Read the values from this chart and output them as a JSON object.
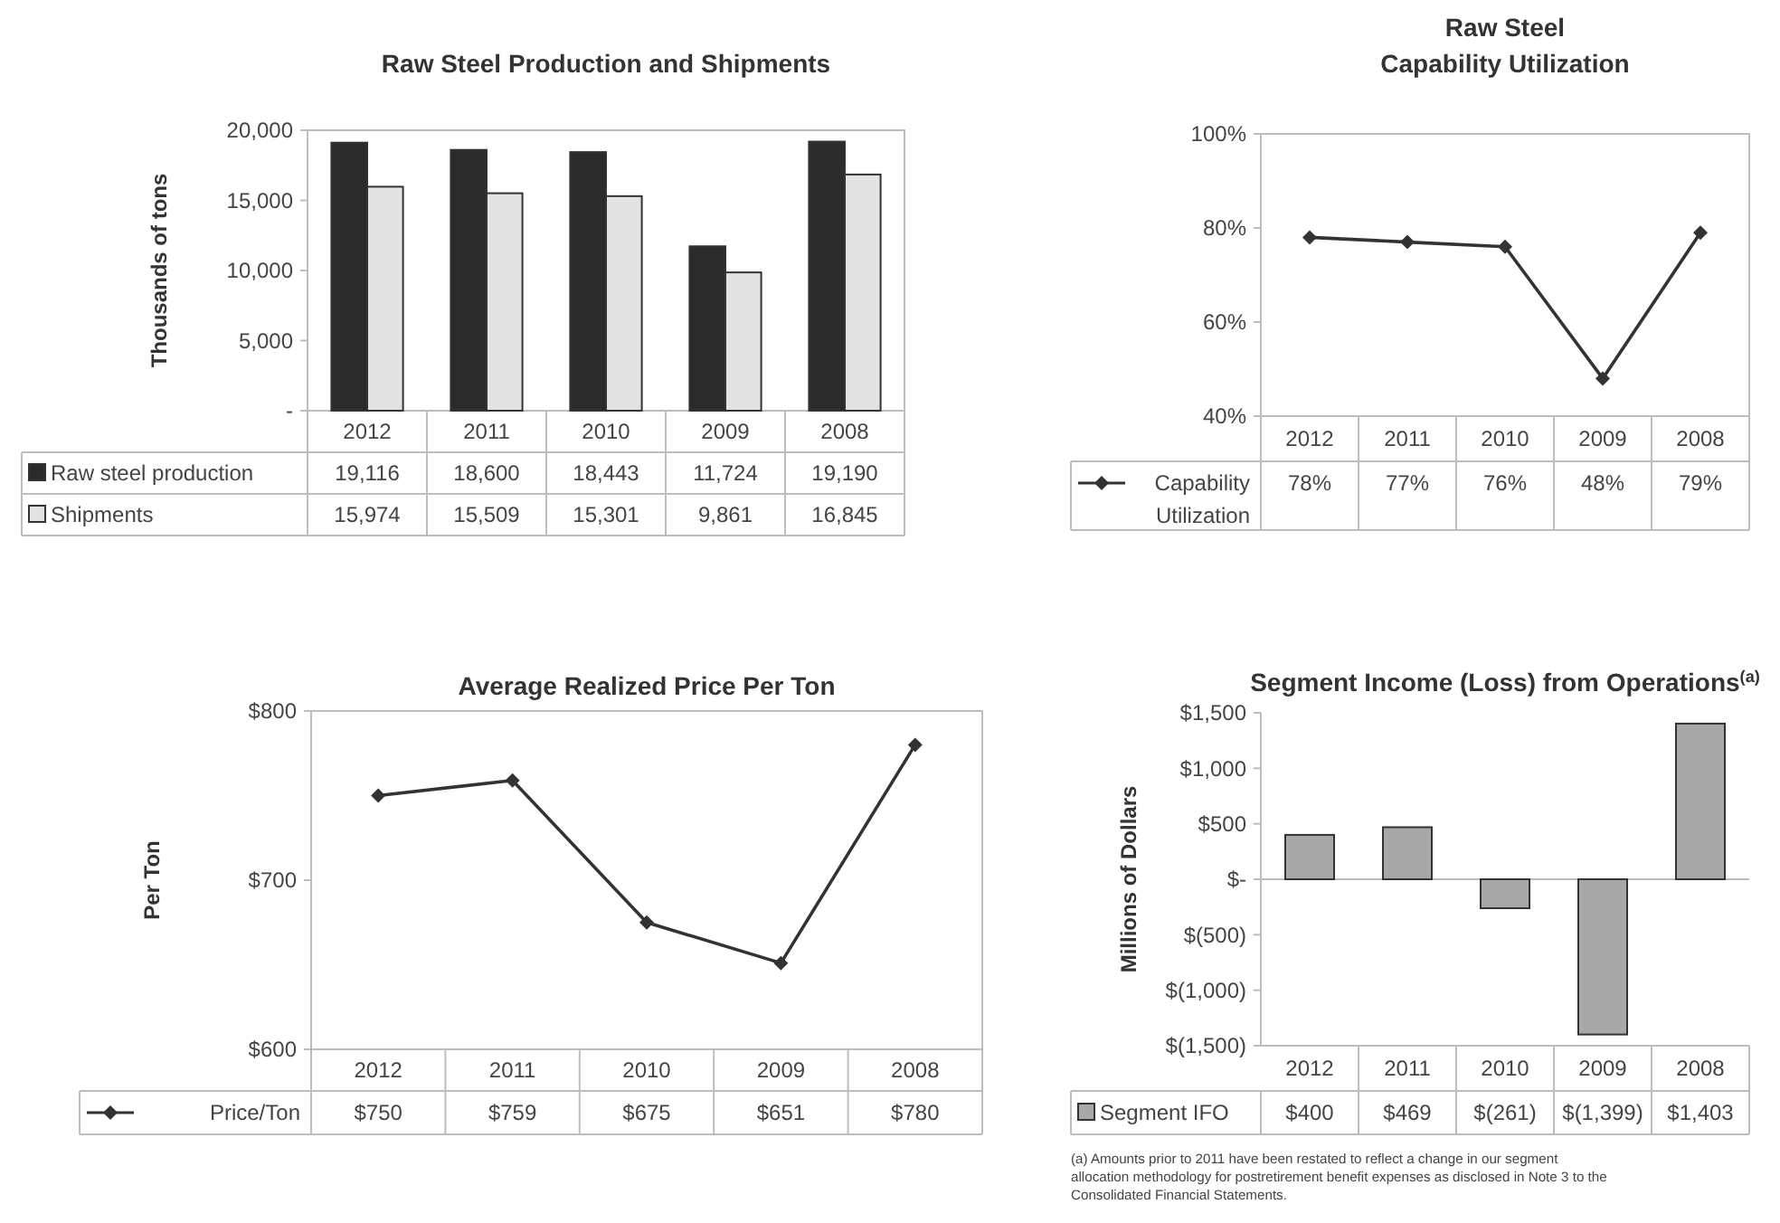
{
  "chart_data": [
    {
      "type": "bar",
      "title": "Raw Steel Production and Shipments",
      "ylabel": "Thousands of tons",
      "categories": [
        "2012",
        "2011",
        "2010",
        "2009",
        "2008"
      ],
      "ylim": [
        0,
        20000
      ],
      "yticks": [
        {
          "value": 0,
          "label": "-"
        },
        {
          "value": 5000,
          "label": "5,000"
        },
        {
          "value": 10000,
          "label": "10,000"
        },
        {
          "value": 15000,
          "label": "15,000"
        },
        {
          "value": 20000,
          "label": "20,000"
        }
      ],
      "legend": "bottom",
      "series": [
        {
          "name": "Raw steel production",
          "color": "#2b2b2b",
          "values": [
            19116,
            18600,
            18443,
            11724,
            19190
          ],
          "value_labels": [
            "19,116",
            "18,600",
            "18,443",
            "11,724",
            "19,190"
          ]
        },
        {
          "name": "Shipments",
          "color": "#e2e2e2",
          "values": [
            15974,
            15509,
            15301,
            9861,
            16845
          ],
          "value_labels": [
            "15,974",
            "15,509",
            "15,301",
            "9,861",
            "16,845"
          ]
        }
      ]
    },
    {
      "type": "line",
      "title": "Raw Steel\nCapability Utilization",
      "categories": [
        "2012",
        "2011",
        "2010",
        "2009",
        "2008"
      ],
      "ylim": [
        40,
        100
      ],
      "yticks": [
        {
          "value": 40,
          "label": "40%"
        },
        {
          "value": 60,
          "label": "60%"
        },
        {
          "value": 80,
          "label": "80%"
        },
        {
          "value": 100,
          "label": "100%"
        }
      ],
      "legend": "bottom",
      "marker": "diamond",
      "line_style": "solid",
      "series": [
        {
          "name": "Capability Utilization",
          "color": "#333333",
          "values": [
            78,
            77,
            76,
            48,
            79
          ],
          "value_labels": [
            "78%",
            "77%",
            "76%",
            "48%",
            "79%"
          ]
        }
      ]
    },
    {
      "type": "line",
      "title": "Average Realized Price Per Ton",
      "ylabel": "Per Ton",
      "categories": [
        "2012",
        "2011",
        "2010",
        "2009",
        "2008"
      ],
      "ylim": [
        600,
        800
      ],
      "yticks": [
        {
          "value": 600,
          "label": "$600"
        },
        {
          "value": 700,
          "label": "$700"
        },
        {
          "value": 800,
          "label": "$800"
        }
      ],
      "legend": "bottom",
      "marker": "diamond",
      "line_style": "solid",
      "series": [
        {
          "name": "Price/Ton",
          "color": "#333333",
          "values": [
            750,
            759,
            675,
            651,
            780
          ],
          "value_labels": [
            "$750",
            "$759",
            "$675",
            "$651",
            "$780"
          ]
        }
      ]
    },
    {
      "type": "bar",
      "title": "Segment Income (Loss) from Operations$^{(a)}$",
      "ylabel": "Millions of Dollars",
      "categories": [
        "2012",
        "2011",
        "2010",
        "2009",
        "2008"
      ],
      "ylim": [
        -1500,
        1500
      ],
      "yticks": [
        {
          "value": -1500,
          "label": "$(1,500)"
        },
        {
          "value": -1000,
          "label": "$(1,000)"
        },
        {
          "value": -500,
          "label": "$(500)"
        },
        {
          "value": 0,
          "label": "$-"
        },
        {
          "value": 500,
          "label": "$500"
        },
        {
          "value": 1000,
          "label": "$1,000"
        },
        {
          "value": 1500,
          "label": "$1,500"
        }
      ],
      "legend": "bottom",
      "annotations": [
        "(a) Amounts prior to 2011 have been restated to reflect a change in our segment allocation methodology for postretirement benefit expenses as disclosed in Note 3 to the Consolidated Financial Statements."
      ],
      "series": [
        {
          "name": "Segment IFO",
          "color": "#a8a8a8",
          "values": [
            400,
            469,
            -261,
            -1399,
            1403
          ],
          "value_labels": [
            "$400",
            "$469",
            "$(261)",
            "$(1,399)",
            "$1,403"
          ]
        }
      ]
    }
  ]
}
